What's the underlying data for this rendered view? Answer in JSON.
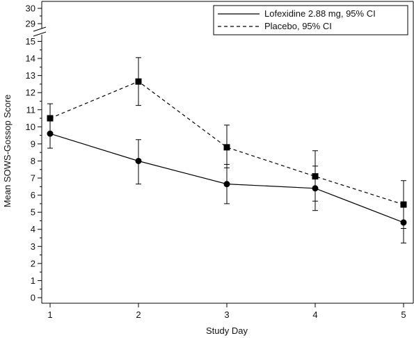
{
  "chart_data": {
    "type": "line",
    "xlabel": "Study Day",
    "ylabel": "Mean SOWS-Gossop Score",
    "x": [
      1,
      2,
      3,
      4,
      5
    ],
    "x_ticks": [
      "1",
      "2",
      "3",
      "4",
      "5"
    ],
    "xlim": [
      0.97,
      5.1
    ],
    "y_ticks_lower": [
      "0",
      "1",
      "2",
      "3",
      "4",
      "5",
      "6",
      "7",
      "8",
      "9",
      "10",
      "11",
      "12",
      "13",
      "14",
      "15"
    ],
    "y_ticks_upper": [
      "29",
      "30"
    ],
    "ylim_lower": [
      0,
      15
    ],
    "ylim_upper": [
      29,
      30
    ],
    "axis_break": "between 15 and 29",
    "grid": false,
    "legend_position": "top-right",
    "series": [
      {
        "name": "Lofexidine 2.88 mg, 95% CI",
        "line_style": "solid",
        "marker": "circle",
        "color": "#000000",
        "values": [
          9.6,
          8.0,
          6.65,
          6.4,
          4.4
        ],
        "ci_low": [
          8.75,
          6.65,
          5.5,
          5.1,
          3.2
        ],
        "ci_high": [
          10.6,
          9.25,
          7.8,
          7.7,
          5.6
        ]
      },
      {
        "name": "Placebo, 95% CI",
        "line_style": "dashed",
        "marker": "square",
        "color": "#000000",
        "values": [
          10.5,
          12.65,
          8.8,
          7.1,
          5.45
        ],
        "ci_low": [
          9.55,
          11.25,
          7.6,
          5.65,
          4.05
        ],
        "ci_high": [
          11.35,
          14.05,
          10.1,
          8.6,
          6.85
        ]
      }
    ]
  }
}
